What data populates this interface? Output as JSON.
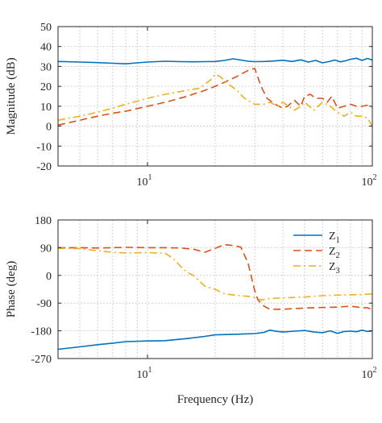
{
  "chart_data": [
    {
      "type": "line",
      "title": "",
      "xlabel": "",
      "ylabel": "Magnitude (dB)",
      "xscale": "log",
      "xlim": [
        4,
        100
      ],
      "ylim": [
        -20,
        50
      ],
      "yticks": [
        -20,
        -10,
        0,
        10,
        20,
        30,
        40,
        50
      ],
      "xtick_labels": [
        {
          "value": 10,
          "base": "10",
          "exp": "1"
        },
        {
          "value": 100,
          "base": "10",
          "exp": "2"
        }
      ],
      "grid": true,
      "legend": null,
      "series": [
        {
          "key": "Z1",
          "color": "#0072BD",
          "dash": "solid",
          "x": [
            4,
            5,
            6,
            7,
            8,
            9,
            10,
            12,
            14,
            16,
            18,
            20,
            22,
            24,
            26,
            28,
            30,
            33,
            36,
            40,
            44,
            48,
            52,
            56,
            60,
            64,
            68,
            72,
            76,
            80,
            85,
            90,
            95,
            100
          ],
          "y": [
            32.5,
            32.2,
            31.9,
            31.6,
            31.3,
            31.8,
            32.2,
            32.6,
            32.4,
            32.3,
            32.4,
            32.5,
            33.0,
            33.8,
            33.2,
            32.6,
            32.4,
            32.5,
            32.7,
            33.1,
            32.5,
            33.3,
            32.2,
            33.0,
            31.8,
            32.4,
            33.2,
            32.3,
            32.8,
            33.6,
            34.1,
            33.0,
            34.0,
            33.2
          ]
        },
        {
          "key": "Z2",
          "color": "#D95319",
          "dash": "dashed",
          "x": [
            4,
            5,
            6,
            7,
            8,
            10,
            12,
            15,
            18,
            20,
            22,
            25,
            28,
            30,
            32,
            34,
            37,
            40,
            42,
            45,
            48,
            50,
            53,
            56,
            60,
            63,
            66,
            70,
            75,
            80,
            85,
            90,
            95,
            100
          ],
          "y": [
            0.5,
            3,
            5,
            6.5,
            7.5,
            10,
            12,
            15,
            18,
            20,
            22,
            25,
            28,
            29,
            20,
            14,
            11,
            9,
            10,
            13,
            10,
            15,
            16,
            14,
            14,
            12,
            15,
            9,
            10,
            11,
            10,
            10,
            10.5,
            9.5
          ]
        },
        {
          "key": "Z3",
          "color": "#EDB120",
          "dash": "dashdot",
          "x": [
            4,
            5,
            6,
            7,
            8,
            10,
            12,
            15,
            17,
            19,
            20,
            21,
            23,
            25,
            27,
            30,
            33,
            35,
            38,
            40,
            45,
            48,
            50,
            55,
            60,
            65,
            70,
            75,
            80,
            85,
            90,
            95,
            100
          ],
          "y": [
            3,
            5,
            7,
            9,
            11,
            14,
            16,
            18,
            19,
            23,
            26,
            25,
            21,
            18,
            14,
            11,
            11,
            12,
            10,
            12,
            8,
            10,
            12,
            8,
            12,
            10,
            7,
            5,
            7,
            5,
            5,
            4,
            0
          ]
        }
      ]
    },
    {
      "type": "line",
      "title": "",
      "xlabel": "Frequency (Hz)",
      "ylabel": "Phase (deg)",
      "xscale": "log",
      "xlim": [
        4,
        100
      ],
      "ylim": [
        -270,
        180
      ],
      "yticks": [
        -270,
        -180,
        -90,
        0,
        90,
        180
      ],
      "xtick_labels": [
        {
          "value": 10,
          "base": "10",
          "exp": "1"
        },
        {
          "value": 100,
          "base": "10",
          "exp": "2"
        }
      ],
      "grid": true,
      "legend": "top-right",
      "series": [
        {
          "key": "Z1",
          "name": "Z",
          "name_sub": "1",
          "color": "#0072BD",
          "dash": "solid",
          "x": [
            4,
            5,
            6,
            7,
            8,
            10,
            12,
            15,
            18,
            20,
            25,
            30,
            33,
            35,
            38,
            40,
            45,
            50,
            55,
            60,
            65,
            70,
            75,
            80,
            85,
            90,
            95,
            100
          ],
          "y": [
            -240,
            -232,
            -225,
            -220,
            -215,
            -213,
            -212,
            -205,
            -198,
            -193,
            -191,
            -189,
            -185,
            -178,
            -182,
            -184,
            -181,
            -179,
            -184,
            -186,
            -180,
            -188,
            -182,
            -181,
            -183,
            -178,
            -182,
            -180
          ]
        },
        {
          "key": "Z2",
          "name": "Z",
          "name_sub": "2",
          "color": "#D95319",
          "dash": "dashed",
          "x": [
            4,
            5,
            6,
            7,
            8,
            10,
            12,
            14,
            16,
            18,
            20,
            22,
            24,
            26,
            28,
            30,
            31,
            33,
            35,
            40,
            50,
            60,
            70,
            80,
            90,
            95,
            100
          ],
          "y": [
            90,
            90,
            89,
            90,
            91,
            90,
            90,
            89,
            85,
            75,
            88,
            100,
            97,
            92,
            40,
            -50,
            -80,
            -100,
            -110,
            -110,
            -106,
            -104,
            -103,
            -100,
            -105,
            -105,
            -112
          ]
        },
        {
          "key": "Z3",
          "name": "Z",
          "name_sub": "3",
          "color": "#EDB120",
          "dash": "dashdot",
          "x": [
            4,
            5,
            6,
            7,
            8,
            10,
            12,
            13,
            14,
            15,
            16,
            18,
            20,
            22,
            25,
            28,
            30,
            32,
            35,
            40,
            50,
            60,
            70,
            80,
            90,
            100
          ],
          "y": [
            88,
            87,
            80,
            75,
            73,
            74,
            72,
            55,
            30,
            10,
            0,
            -35,
            -45,
            -60,
            -65,
            -68,
            -72,
            -80,
            -75,
            -73,
            -70,
            -66,
            -64,
            -63,
            -62,
            -60
          ]
        }
      ]
    }
  ]
}
